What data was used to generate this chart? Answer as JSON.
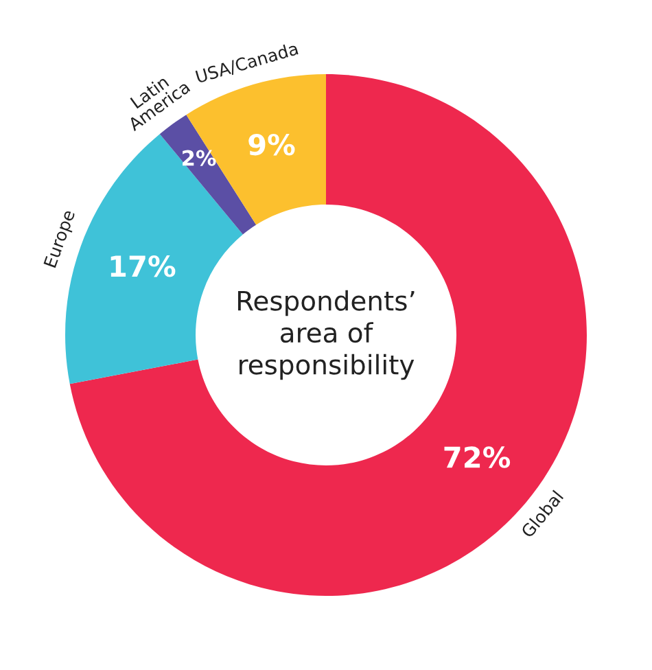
{
  "chart_data": {
    "type": "donut",
    "title": "Respondents’\narea of\nresponsibility",
    "categories": [
      "Global",
      "Europe",
      "Latin\nAmerica",
      "USA/Canada"
    ],
    "values": [
      72,
      17,
      2,
      9
    ],
    "colors": [
      "#ee284e",
      "#3fc2d8",
      "#5b4fa5",
      "#fcc02e"
    ],
    "value_labels": [
      "72%",
      "17%",
      "2%",
      "9%"
    ],
    "legend": false
  }
}
